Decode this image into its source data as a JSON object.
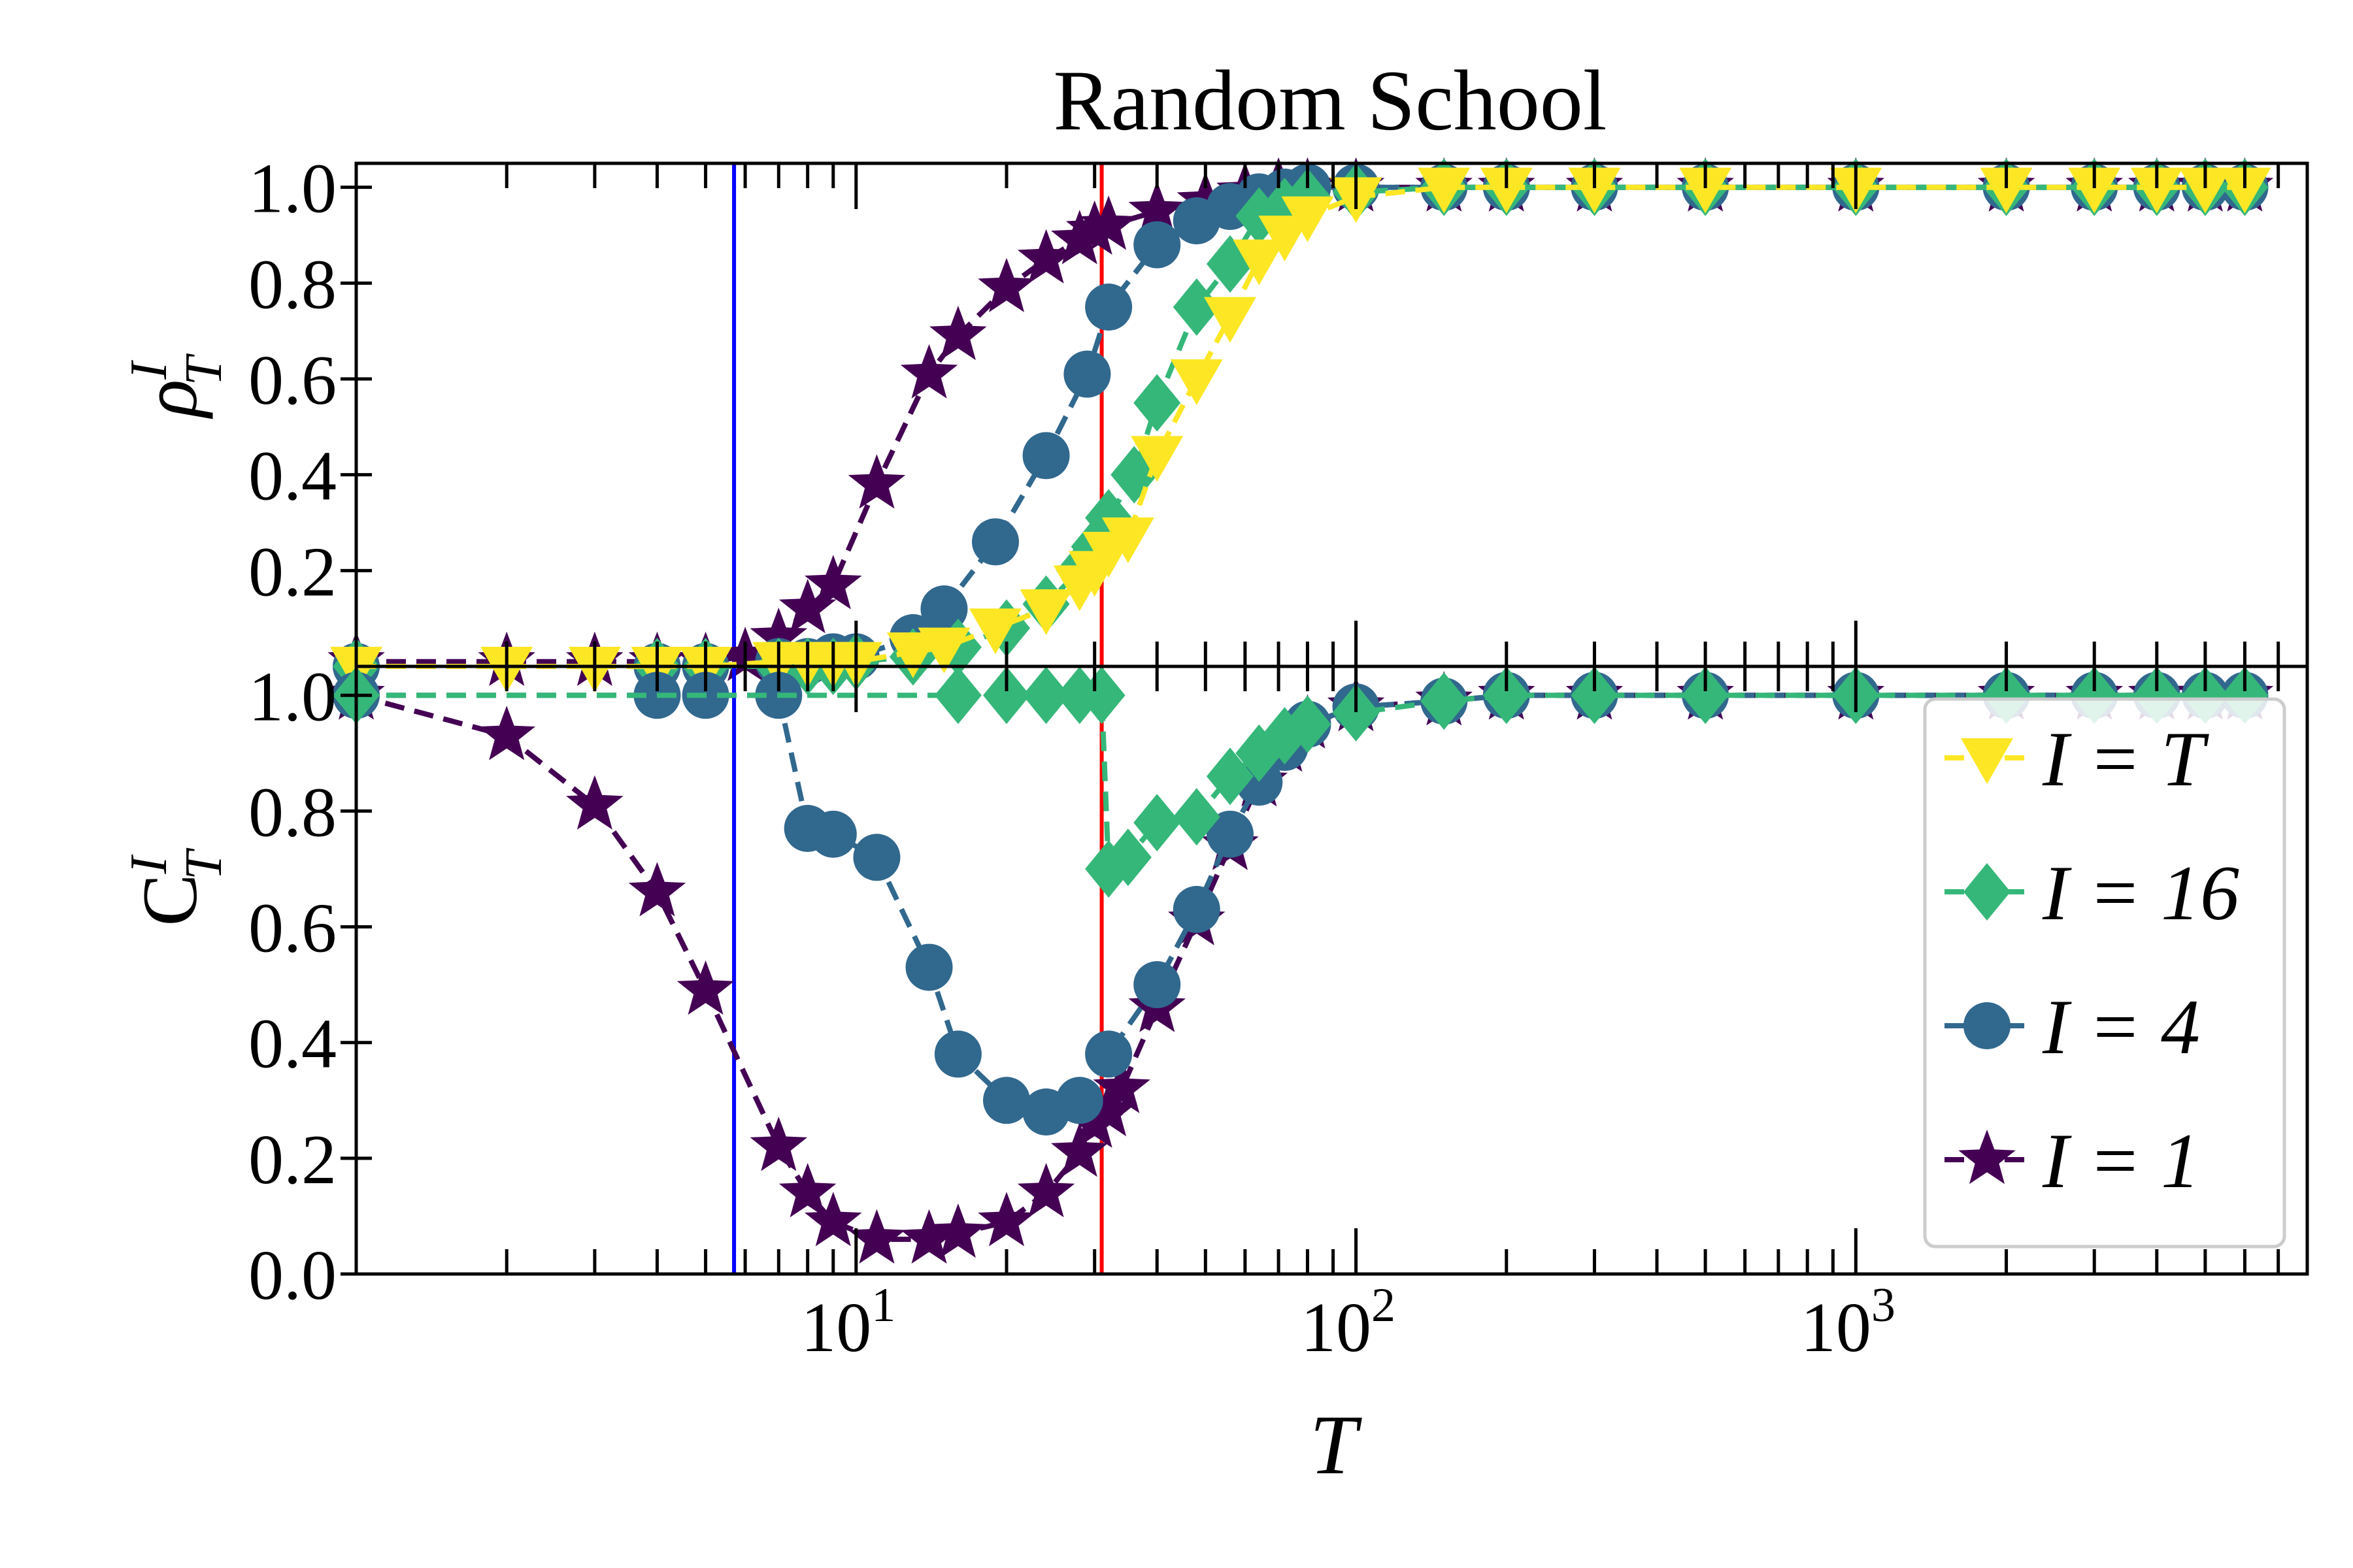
{
  "chart_data": {
    "type": "line",
    "title": "Random School",
    "xscale": "log",
    "xlabel": "T",
    "xlim": [
      1,
      8000
    ],
    "x_ticks": [
      {
        "value": 10,
        "base": "10",
        "exp": "1"
      },
      {
        "value": 100,
        "base": "10",
        "exp": "2"
      },
      {
        "value": 1000,
        "base": "10",
        "exp": "3"
      }
    ],
    "vlines": [
      {
        "x": 5.7,
        "color": "#0000ff"
      },
      {
        "x": 31,
        "color": "#ff0000"
      }
    ],
    "legend": {
      "placement": "lower-right of bottom panel"
    },
    "panels": [
      {
        "id": "top",
        "ylabel_main": "ρ",
        "ylabel_sup": "I",
        "ylabel_sub": "T",
        "ylim": [
          0,
          1.05
        ],
        "y_ticks": [
          "0.2",
          "0.4",
          "0.6",
          "0.8",
          "1.0"
        ],
        "series": [
          {
            "name": "I = 1",
            "color": "#440154",
            "marker": "star",
            "x": [
              1,
              2,
              3,
              4,
              5,
              6,
              7,
              8,
              9,
              11,
              14,
              16,
              20,
              24,
              28,
              30,
              32,
              40,
              50,
              60,
              70,
              80,
              100,
              150,
              200,
              300,
              500,
              1000,
              2000,
              3000,
              4000,
              5000,
              6000
            ],
            "y": [
              0.01,
              0.01,
              0.01,
              0.01,
              0.01,
              0.02,
              0.06,
              0.12,
              0.17,
              0.38,
              0.61,
              0.69,
              0.79,
              0.85,
              0.89,
              0.91,
              0.92,
              0.95,
              0.97,
              0.99,
              1.0,
              1.0,
              1.0,
              1.0,
              1.0,
              1.0,
              1.0,
              1.0,
              1.0,
              1.0,
              1.0,
              1.0,
              1.0
            ]
          },
          {
            "name": "I = 4",
            "color": "#31688e",
            "marker": "circle",
            "x": [
              1,
              4,
              5,
              7,
              8,
              9,
              10,
              13,
              15,
              19,
              24,
              29,
              32,
              40,
              48,
              56,
              64,
              72,
              80,
              100,
              150,
              200,
              300,
              500,
              1000,
              2000,
              3000,
              4000,
              5000,
              6000
            ],
            "y": [
              0.0,
              0.0,
              0.0,
              0.01,
              0.01,
              0.02,
              0.02,
              0.06,
              0.12,
              0.26,
              0.44,
              0.61,
              0.75,
              0.88,
              0.93,
              0.96,
              0.98,
              0.99,
              1.0,
              1.0,
              1.0,
              1.0,
              1.0,
              1.0,
              1.0,
              1.0,
              1.0,
              1.0,
              1.0,
              1.0
            ]
          },
          {
            "name": "I = 16",
            "color": "#35b779",
            "marker": "diamond",
            "x": [
              1,
              4,
              5,
              7,
              8,
              9,
              10,
              13,
              16,
              20,
              24,
              28,
              30,
              32,
              36,
              40,
              48,
              56,
              64,
              72,
              80,
              100,
              150,
              200,
              300,
              500,
              1000,
              2000,
              3000,
              4000,
              5000,
              6000
            ],
            "y": [
              0.0,
              0.0,
              0.0,
              0.0,
              0.0,
              0.0,
              0.01,
              0.02,
              0.04,
              0.08,
              0.13,
              0.2,
              0.25,
              0.31,
              0.4,
              0.55,
              0.75,
              0.84,
              0.94,
              0.96,
              0.98,
              0.99,
              1.0,
              1.0,
              1.0,
              1.0,
              1.0,
              1.0,
              1.0,
              1.0,
              1.0,
              1.0
            ]
          },
          {
            "name": "I = T",
            "color": "#fde725",
            "marker": "triangle-down",
            "x": [
              1,
              2,
              3,
              4,
              5,
              7,
              8,
              9,
              10,
              13,
              15,
              19,
              24,
              28,
              30,
              32,
              35,
              40,
              48,
              56,
              64,
              72,
              80,
              100,
              150,
              200,
              300,
              500,
              1000,
              2000,
              3000,
              4000,
              5000,
              6000
            ],
            "y": [
              0.0,
              0.0,
              0.0,
              0.0,
              0.0,
              0.01,
              0.01,
              0.01,
              0.01,
              0.03,
              0.04,
              0.08,
              0.12,
              0.17,
              0.2,
              0.24,
              0.27,
              0.44,
              0.6,
              0.73,
              0.85,
              0.9,
              0.94,
              0.98,
              1.0,
              1.0,
              1.0,
              1.0,
              1.0,
              1.0,
              1.0,
              1.0,
              1.0,
              1.0
            ]
          }
        ]
      },
      {
        "id": "bottom",
        "ylabel_main": "C",
        "ylabel_sup": "I",
        "ylabel_sub": "T",
        "ylim": [
          0,
          1.05
        ],
        "y_ticks": [
          "0.0",
          "0.2",
          "0.4",
          "0.6",
          "0.8",
          "1.0"
        ],
        "series": [
          {
            "name": "I = 1",
            "color": "#440154",
            "marker": "star",
            "x": [
              1,
              2,
              3,
              4,
              5,
              7,
              8,
              9,
              11,
              14,
              16,
              20,
              24,
              28,
              30,
              32,
              34,
              40,
              48,
              56,
              64,
              72,
              80,
              100,
              150,
              200,
              300,
              500,
              1000,
              2000,
              3000,
              4000,
              5000,
              6000
            ],
            "y": [
              1.0,
              0.93,
              0.81,
              0.66,
              0.49,
              0.22,
              0.14,
              0.09,
              0.06,
              0.06,
              0.07,
              0.09,
              0.14,
              0.21,
              0.26,
              0.28,
              0.32,
              0.46,
              0.61,
              0.74,
              0.85,
              0.91,
              0.95,
              0.98,
              0.99,
              1.0,
              1.0,
              1.0,
              1.0,
              1.0,
              1.0,
              1.0,
              1.0,
              1.0
            ]
          },
          {
            "name": "I = 4",
            "color": "#31688e",
            "marker": "circle",
            "x": [
              1,
              4,
              5,
              7,
              8,
              9,
              11,
              14,
              16,
              20,
              24,
              28,
              32,
              40,
              48,
              56,
              64,
              72,
              80,
              100,
              150,
              200,
              300,
              500,
              1000,
              2000,
              3000,
              4000,
              5000,
              6000
            ],
            "y": [
              1.0,
              1.0,
              1.0,
              1.0,
              0.77,
              0.76,
              0.72,
              0.53,
              0.38,
              0.3,
              0.28,
              0.3,
              0.38,
              0.5,
              0.63,
              0.76,
              0.85,
              0.91,
              0.95,
              0.98,
              0.99,
              1.0,
              1.0,
              1.0,
              1.0,
              1.0,
              1.0,
              1.0,
              1.0,
              1.0
            ]
          },
          {
            "name": "I = 16",
            "color": "#35b779",
            "marker": "diamond",
            "x": [
              1,
              16,
              20,
              24,
              28,
              31,
              32,
              35,
              40,
              48,
              56,
              64,
              72,
              80,
              100,
              150,
              200,
              300,
              500,
              1000,
              2000,
              3000,
              4000,
              5000,
              6000
            ],
            "y": [
              1.0,
              1.0,
              1.0,
              1.0,
              1.0,
              1.0,
              0.7,
              0.72,
              0.78,
              0.79,
              0.86,
              0.9,
              0.93,
              0.95,
              0.97,
              0.99,
              1.0,
              1.0,
              1.0,
              1.0,
              1.0,
              1.0,
              1.0,
              1.0,
              1.0
            ]
          }
        ]
      }
    ]
  }
}
